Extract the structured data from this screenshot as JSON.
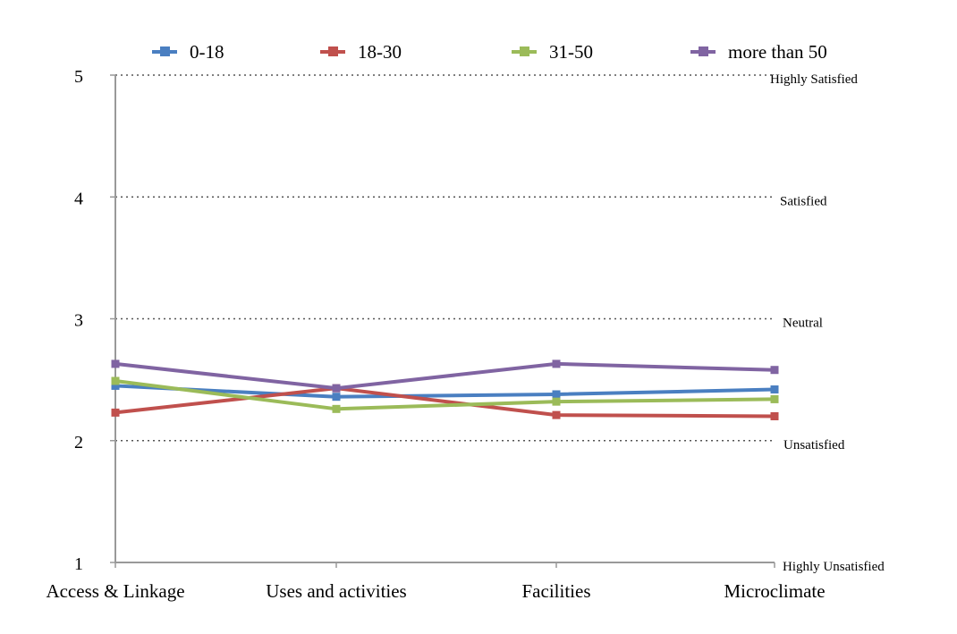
{
  "chart_data": {
    "type": "line",
    "categories": [
      "Access & Linkage",
      "Uses and activities",
      "Facilities",
      "Microclimate"
    ],
    "ylim": [
      1,
      5
    ],
    "yticks": [
      "1",
      "2",
      "3",
      "4",
      "5"
    ],
    "grid": "horizontal-dotted",
    "legend_position": "top",
    "level_labels": [
      {
        "y": 5,
        "text": "Highly Satisfied"
      },
      {
        "y": 4,
        "text": "Satisfied"
      },
      {
        "y": 3,
        "text": "Neutral"
      },
      {
        "y": 2,
        "text": "Unsatisfied"
      },
      {
        "y": 1,
        "text": "Highly Unsatisfied"
      }
    ],
    "series": [
      {
        "name": "0-18",
        "color": "#4a7fc1",
        "values": [
          2.45,
          2.36,
          2.38,
          2.42
        ]
      },
      {
        "name": "18-30",
        "color": "#c0504d",
        "values": [
          2.23,
          2.43,
          2.21,
          2.2
        ]
      },
      {
        "name": "31-50",
        "color": "#9bbb59",
        "values": [
          2.49,
          2.26,
          2.32,
          2.34
        ]
      },
      {
        "name": "more than 50",
        "color": "#8064a2",
        "values": [
          2.63,
          2.43,
          2.63,
          2.58
        ]
      }
    ]
  }
}
